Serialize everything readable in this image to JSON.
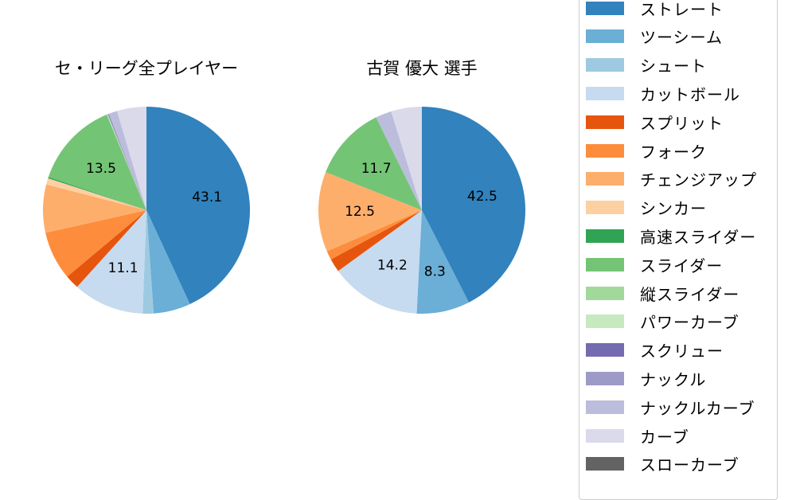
{
  "chart_data": [
    {
      "type": "pie",
      "title": "セ・リーグ全プレイヤー",
      "start_angle": 90,
      "direction": "clockwise",
      "categories": [
        "ストレート",
        "ツーシーム",
        "シュート",
        "カットボール",
        "スプリット",
        "フォーク",
        "チェンジアップ",
        "シンカー",
        "高速スライダー",
        "スライダー",
        "縦スライダー",
        "パワーカーブ",
        "スクリュー",
        "ナックル",
        "ナックルカーブ",
        "カーブ",
        "スローカーブ"
      ],
      "values": [
        43.1,
        5.8,
        1.7,
        11.1,
        2.2,
        7.6,
        7.5,
        1.0,
        0.2,
        13.5,
        0.1,
        0.1,
        0.1,
        0.1,
        1.3,
        4.6,
        0.0
      ],
      "labels_shown": [
        {
          "category": "ストレート",
          "text": "43.1"
        },
        {
          "category": "カットボール",
          "text": "11.1"
        },
        {
          "category": "スライダー",
          "text": "13.5"
        }
      ]
    },
    {
      "type": "pie",
      "title": "古賀 優大  選手",
      "start_angle": 90,
      "direction": "clockwise",
      "categories": [
        "ストレート",
        "ツーシーム",
        "シュート",
        "カットボール",
        "スプリット",
        "フォーク",
        "チェンジアップ",
        "シンカー",
        "高速スライダー",
        "スライダー",
        "縦スライダー",
        "パワーカーブ",
        "スクリュー",
        "ナックル",
        "ナックルカーブ",
        "カーブ",
        "スローカーブ"
      ],
      "values": [
        42.5,
        8.3,
        0.0,
        14.2,
        2.1,
        1.4,
        12.5,
        0.0,
        0.0,
        11.7,
        0.0,
        0.0,
        0.0,
        0.0,
        2.5,
        4.8,
        0.0
      ],
      "labels_shown": [
        {
          "category": "ストレート",
          "text": "42.5"
        },
        {
          "category": "ツーシーム",
          "text": "8.3"
        },
        {
          "category": "カットボール",
          "text": "14.2"
        },
        {
          "category": "チェンジアップ",
          "text": "12.5"
        },
        {
          "category": "スライダー",
          "text": "11.7"
        }
      ]
    }
  ],
  "titles": {
    "left": "セ・リーグ全プレイヤー",
    "right": "古賀 優大  選手"
  },
  "legend": {
    "items": [
      {
        "label": "ストレート",
        "color": "#3182bd"
      },
      {
        "label": "ツーシーム",
        "color": "#6baed6"
      },
      {
        "label": "シュート",
        "color": "#9ecae1"
      },
      {
        "label": "カットボール",
        "color": "#c6dbef"
      },
      {
        "label": "スプリット",
        "color": "#e6550d"
      },
      {
        "label": "フォーク",
        "color": "#fd8d3c"
      },
      {
        "label": "チェンジアップ",
        "color": "#fdae6b"
      },
      {
        "label": "シンカー",
        "color": "#fdd0a2"
      },
      {
        "label": "高速スライダー",
        "color": "#31a354"
      },
      {
        "label": "スライダー",
        "color": "#74c476"
      },
      {
        "label": "縦スライダー",
        "color": "#a1d99b"
      },
      {
        "label": "パワーカーブ",
        "color": "#c7e9c0"
      },
      {
        "label": "スクリュー",
        "color": "#756bb1"
      },
      {
        "label": "ナックル",
        "color": "#9e9ac8"
      },
      {
        "label": "ナックルカーブ",
        "color": "#bcbddc"
      },
      {
        "label": "カーブ",
        "color": "#dadaeb"
      },
      {
        "label": "スローカーブ",
        "color": "#636363"
      }
    ]
  }
}
